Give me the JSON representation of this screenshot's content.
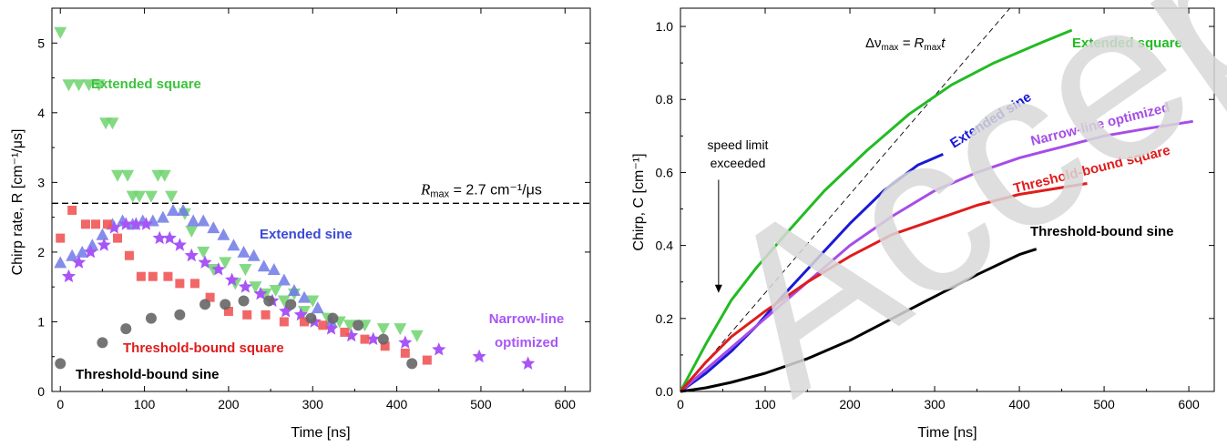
{
  "watermark": "Accepted manuscript",
  "chart_data": [
    {
      "type": "scatter",
      "xlabel": "Time [ns]",
      "ylabel": "Chirp rate, R [cm⁻¹/μs]",
      "xlim": [
        -10,
        630
      ],
      "ylim": [
        0,
        5.5
      ],
      "xticks": [
        0,
        100,
        200,
        300,
        400,
        500,
        600
      ],
      "yticks": [
        0,
        1,
        2,
        3,
        4,
        5
      ],
      "hline": {
        "y": 2.7,
        "label_sym": "R",
        "label_sub": "max",
        "label_rest": " = 2.7 cm⁻¹/μs"
      },
      "series": [
        {
          "name": "Extended square",
          "color": "#6dd36d",
          "marker": "triangle-down",
          "x": [
            0,
            10,
            22,
            34,
            46,
            54,
            62,
            68,
            80,
            86,
            94,
            108,
            116,
            124,
            132,
            148,
            156,
            170,
            182,
            196,
            208,
            220,
            232,
            244,
            256,
            266,
            278,
            290,
            300,
            318,
            332,
            344,
            362,
            384,
            404,
            424
          ],
          "y": [
            5.15,
            4.4,
            4.4,
            4.4,
            4.4,
            3.85,
            3.85,
            3.1,
            3.1,
            2.8,
            2.8,
            2.8,
            3.1,
            3.1,
            2.8,
            2.55,
            2.3,
            2.0,
            1.75,
            1.85,
            1.55,
            1.75,
            1.5,
            1.4,
            1.45,
            1.3,
            1.4,
            1.15,
            1.3,
            1.05,
            1.0,
            0.95,
            0.95,
            0.9,
            0.9,
            0.8
          ],
          "label": "Extended square",
          "label_color": "#3cc33c"
        },
        {
          "name": "Extended sine",
          "color": "#6f79e5",
          "marker": "triangle-up",
          "x": [
            0,
            14,
            26,
            38,
            50,
            62,
            74,
            86,
            98,
            110,
            122,
            134,
            146,
            158,
            170,
            182,
            194,
            206,
            218,
            230,
            242,
            254,
            266,
            278,
            290,
            306,
            322
          ],
          "y": [
            1.85,
            1.95,
            2.0,
            2.1,
            2.25,
            2.4,
            2.45,
            2.4,
            2.45,
            2.45,
            2.5,
            2.6,
            2.6,
            2.45,
            2.45,
            2.35,
            2.25,
            2.1,
            2.0,
            1.95,
            1.8,
            1.75,
            1.6,
            1.45,
            1.35,
            1.2,
            1.0
          ],
          "label": "Extended sine",
          "label_color": "#3b49d6"
        },
        {
          "name": "Narrow-line optimized",
          "color": "#a855f7",
          "marker": "star",
          "x": [
            10,
            22,
            36,
            52,
            64,
            78,
            90,
            102,
            118,
            130,
            142,
            156,
            172,
            188,
            204,
            220,
            238,
            252,
            268,
            286,
            302,
            322,
            346,
            372,
            410,
            450,
            498,
            556
          ],
          "y": [
            1.65,
            1.85,
            2.0,
            2.1,
            2.35,
            2.4,
            2.4,
            2.4,
            2.2,
            2.2,
            2.1,
            1.95,
            1.85,
            1.75,
            1.6,
            1.5,
            1.4,
            1.3,
            1.15,
            1.1,
            1.0,
            0.9,
            0.8,
            0.75,
            0.7,
            0.6,
            0.5,
            0.4
          ],
          "label": "Narrow-line optimized",
          "label_color": "#a855f7"
        },
        {
          "name": "Threshold-bound square",
          "color": "#ef5757",
          "marker": "square",
          "x": [
            0,
            14,
            30,
            42,
            56,
            68,
            82,
            96,
            110,
            128,
            142,
            160,
            178,
            200,
            222,
            244,
            266,
            290,
            312,
            338,
            362,
            386,
            410,
            436
          ],
          "y": [
            2.2,
            2.6,
            2.4,
            2.4,
            2.4,
            2.2,
            1.95,
            1.65,
            1.65,
            1.65,
            1.55,
            1.55,
            1.35,
            1.15,
            1.1,
            1.1,
            1.0,
            1.0,
            0.95,
            0.85,
            0.75,
            0.65,
            0.55,
            0.45
          ],
          "label": "Threshold-bound square",
          "label_color": "#e01c1c"
        },
        {
          "name": "Threshold-bound sine",
          "color": "#666666",
          "marker": "circle",
          "x": [
            0,
            50,
            78,
            108,
            142,
            172,
            196,
            218,
            248,
            274,
            298,
            324,
            354,
            384,
            418
          ],
          "y": [
            0.4,
            0.7,
            0.9,
            1.05,
            1.1,
            1.25,
            1.25,
            1.3,
            1.3,
            1.25,
            1.05,
            1.05,
            0.95,
            0.75,
            0.4
          ],
          "label": "Threshold-bound sine",
          "label_color": "#000000"
        }
      ]
    },
    {
      "type": "line",
      "xlabel": "Time [ns]",
      "ylabel": "Chirp, C [cm⁻¹]",
      "xlim": [
        0,
        630
      ],
      "ylim": [
        0,
        1.05
      ],
      "xticks": [
        0,
        100,
        200,
        300,
        400,
        500,
        600
      ],
      "yticks": [
        0.0,
        0.2,
        0.4,
        0.6,
        0.8,
        1.0
      ],
      "ytick_labels": [
        "0.0",
        "0.2",
        "0.4",
        "0.6",
        "0.8",
        "1.0"
      ],
      "reference_line": {
        "slope": 0.0027,
        "label_lhs": "Δν",
        "label_sub": "max",
        "label_rhs": " = R",
        "label_sub2": "max",
        "label_t": "t"
      },
      "annotation": {
        "lines": [
          "speed limit",
          "exceeded"
        ],
        "arrow_x": 45,
        "arrow_y_from": 0.58,
        "arrow_y_to": 0.27
      },
      "series": [
        {
          "name": "Extended square",
          "color": "#22bb22",
          "x": [
            0,
            30,
            60,
            90,
            120,
            170,
            220,
            270,
            320,
            370,
            420,
            462
          ],
          "y": [
            0,
            0.13,
            0.25,
            0.34,
            0.42,
            0.55,
            0.66,
            0.76,
            0.84,
            0.9,
            0.95,
            0.99
          ],
          "label": "Extended square"
        },
        {
          "name": "Extended sine",
          "color": "#1a1ad6",
          "x": [
            0,
            30,
            60,
            90,
            120,
            160,
            200,
            240,
            280,
            310
          ],
          "y": [
            0,
            0.05,
            0.11,
            0.18,
            0.26,
            0.36,
            0.46,
            0.55,
            0.62,
            0.65
          ],
          "label": "Extended sine"
        },
        {
          "name": "Narrow-line optimized",
          "color": "#a64de8",
          "x": [
            0,
            30,
            60,
            100,
            150,
            200,
            250,
            300,
            350,
            400,
            450,
            500,
            550,
            605
          ],
          "y": [
            0,
            0.06,
            0.12,
            0.2,
            0.3,
            0.4,
            0.48,
            0.55,
            0.6,
            0.64,
            0.67,
            0.7,
            0.72,
            0.74
          ],
          "label": "Narrow-line optimized"
        },
        {
          "name": "Threshold-bound square",
          "color": "#e01c1c",
          "x": [
            0,
            30,
            60,
            100,
            150,
            200,
            250,
            300,
            350,
            400,
            440,
            480
          ],
          "y": [
            0,
            0.08,
            0.15,
            0.22,
            0.3,
            0.37,
            0.43,
            0.47,
            0.51,
            0.54,
            0.555,
            0.57
          ],
          "label": "Threshold-bound square"
        },
        {
          "name": "Threshold-bound sine",
          "color": "#000000",
          "x": [
            0,
            30,
            60,
            100,
            150,
            200,
            250,
            300,
            350,
            400,
            420
          ],
          "y": [
            0,
            0.01,
            0.025,
            0.05,
            0.09,
            0.14,
            0.2,
            0.26,
            0.32,
            0.375,
            0.39
          ],
          "label": "Threshold-bound sine"
        }
      ]
    }
  ]
}
